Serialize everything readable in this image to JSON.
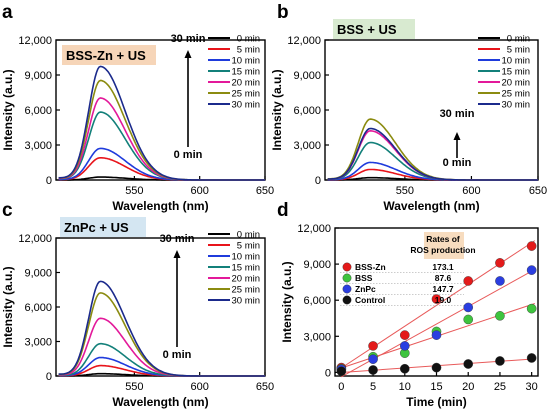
{
  "chart_data": [
    {
      "panel": "a",
      "type": "line",
      "title": "BSS-Zn + US",
      "title_bg": "#f6d5b8",
      "xlabel": "Wavelength (nm)",
      "ylabel": "Intensity (a.u.)",
      "xlim": [
        490,
        650
      ],
      "ylim": [
        0,
        12000
      ],
      "xticks": [
        550,
        600,
        650
      ],
      "yticks": [
        0,
        3000,
        6000,
        9000,
        12000
      ],
      "ytick_labels": [
        "0",
        "3,000",
        "6,000",
        "9,000",
        "12,000"
      ],
      "peak_x": 524,
      "arrow_labels": {
        "top": "30 min",
        "bottom": "0 min"
      },
      "legend_position": "top-right",
      "series": [
        {
          "name": "0 min",
          "color": "#000000",
          "peak": 250
        },
        {
          "name": "5 min",
          "color": "#e8141b",
          "peak": 1900
        },
        {
          "name": "10 min",
          "color": "#1f3bdc",
          "peak": 2700
        },
        {
          "name": "15 min",
          "color": "#13807a",
          "peak": 5800
        },
        {
          "name": "20 min",
          "color": "#e3199a",
          "peak": 7000
        },
        {
          "name": "25 min",
          "color": "#8b8b10",
          "peak": 8500
        },
        {
          "name": "30 min",
          "color": "#1b2a8c",
          "peak": 9700
        }
      ]
    },
    {
      "panel": "b",
      "type": "line",
      "title": "BSS + US",
      "title_bg": "#d8ead0",
      "xlabel": "Wavelength (nm)",
      "ylabel": "Intensity (a.u.)",
      "xlim": [
        490,
        650
      ],
      "ylim": [
        0,
        12000
      ],
      "xticks": [
        550,
        600,
        650
      ],
      "yticks": [
        0,
        3000,
        6000,
        9000,
        12000
      ],
      "ytick_labels": [
        "0",
        "3,000",
        "6,000",
        "9,000",
        "12,000"
      ],
      "peak_x": 524,
      "arrow_labels": {
        "top": "30 min",
        "bottom": "0 min"
      },
      "legend_position": "top-right",
      "series": [
        {
          "name": "0 min",
          "color": "#000000",
          "peak": 200
        },
        {
          "name": "5 min",
          "color": "#e8141b",
          "peak": 900
        },
        {
          "name": "10 min",
          "color": "#1f3bdc",
          "peak": 1500
        },
        {
          "name": "15 min",
          "color": "#13807a",
          "peak": 3200
        },
        {
          "name": "20 min",
          "color": "#e3199a",
          "peak": 4200
        },
        {
          "name": "25 min",
          "color": "#8b8b10",
          "peak": 5200
        },
        {
          "name": "30 min",
          "color": "#1b2a8c",
          "peak": 4400
        }
      ]
    },
    {
      "panel": "c",
      "type": "line",
      "title": "ZnPc + US",
      "title_bg": "#d4e6f2",
      "xlabel": "Wavelength (nm)",
      "ylabel": "Intensity (a.u.)",
      "xlim": [
        490,
        650
      ],
      "ylim": [
        0,
        12000
      ],
      "xticks": [
        550,
        600,
        650
      ],
      "yticks": [
        0,
        3000,
        6000,
        9000,
        12000
      ],
      "ytick_labels": [
        "0",
        "3,000",
        "6,000",
        "9,000",
        "12,000"
      ],
      "peak_x": 524,
      "arrow_labels": {
        "top": "30 min",
        "bottom": "0 min"
      },
      "legend_position": "top-right",
      "series": [
        {
          "name": "0 min",
          "color": "#000000",
          "peak": 200
        },
        {
          "name": "5 min",
          "color": "#e8141b",
          "peak": 900
        },
        {
          "name": "10 min",
          "color": "#1f3bdc",
          "peak": 1600
        },
        {
          "name": "15 min",
          "color": "#13807a",
          "peak": 2800
        },
        {
          "name": "20 min",
          "color": "#e3199a",
          "peak": 5000
        },
        {
          "name": "25 min",
          "color": "#8b8b10",
          "peak": 7200
        },
        {
          "name": "30 min",
          "color": "#1b2a8c",
          "peak": 8200
        }
      ]
    },
    {
      "panel": "d",
      "type": "scatter",
      "xlabel": "Time (min)",
      "ylabel": "Intensity (a.u.)",
      "xlim": [
        -1,
        31
      ],
      "ylim": [
        -300,
        12000
      ],
      "xticks": [
        0,
        5,
        10,
        15,
        20,
        25,
        30
      ],
      "yticks": [
        0,
        3000,
        6000,
        9000,
        12000
      ],
      "ytick_labels": [
        "0",
        "3,000",
        "6,000",
        "9,000",
        "12,000"
      ],
      "x": [
        0,
        5,
        10,
        15,
        20,
        25,
        30
      ],
      "fit_line_color": "#e85a5a",
      "legend_header": [
        "Rates of",
        "ROS production"
      ],
      "legend_position": "top-left",
      "series": [
        {
          "name": "BSS-Zn",
          "rate": "173.1",
          "color": "#e41a1a",
          "y": [
            400,
            2200,
            3100,
            6100,
            7600,
            9100,
            10500
          ]
        },
        {
          "name": "BSS",
          "rate": "87.6",
          "color": "#3ec43e",
          "y": [
            300,
            1300,
            1600,
            3400,
            4400,
            4700,
            5300
          ]
        },
        {
          "name": "ZnPc",
          "rate": "147.7",
          "color": "#2b3ee0",
          "y": [
            250,
            1100,
            2200,
            3100,
            5400,
            7600,
            8500
          ]
        },
        {
          "name": "Control",
          "rate": "19.0",
          "color": "#111111",
          "y": [
            100,
            200,
            300,
            400,
            700,
            950,
            1200
          ]
        }
      ]
    }
  ]
}
